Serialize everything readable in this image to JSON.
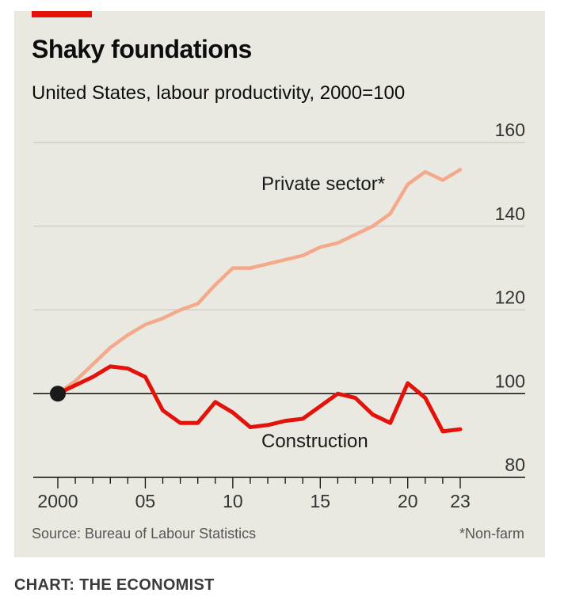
{
  "header": {
    "title": "Shaky foundations",
    "subtitle": "United States, labour productivity, 2000=100"
  },
  "footer": {
    "source": "Source: Bureau of Labour Statistics",
    "footnote": "*Non-farm",
    "credit": "CHART: THE ECONOMIST"
  },
  "colors": {
    "accent": "#e3120b",
    "private_sector": "#f4a98b",
    "construction": "#e3120b",
    "background": "#e9e9e2"
  },
  "chart_data": {
    "type": "line",
    "title": "Shaky foundations",
    "subtitle": "United States, labour productivity, 2000=100",
    "x": [
      2000,
      2001,
      2002,
      2003,
      2004,
      2005,
      2006,
      2007,
      2008,
      2009,
      2010,
      2011,
      2012,
      2013,
      2014,
      2015,
      2016,
      2017,
      2018,
      2019,
      2020,
      2021,
      2022,
      2023
    ],
    "series": [
      {
        "name": "Private sector*",
        "color": "#f4a98b",
        "values": [
          100,
          103,
          107,
          111,
          114,
          116.5,
          118,
          120,
          121.5,
          126,
          130,
          130,
          131,
          132,
          133,
          135,
          136,
          138,
          140,
          143,
          150,
          153,
          151,
          153.5
        ]
      },
      {
        "name": "Construction",
        "color": "#e3120b",
        "values": [
          100,
          102,
          104,
          106.5,
          106,
          104,
          96,
          93,
          93,
          98,
          95.5,
          92,
          92.5,
          93.5,
          94,
          97,
          100,
          99,
          95,
          93,
          102.5,
          99,
          91,
          91.5
        ]
      }
    ],
    "xtick_labels": [
      {
        "x": 2000,
        "label": "2000"
      },
      {
        "x": 2005,
        "label": "05"
      },
      {
        "x": 2010,
        "label": "10"
      },
      {
        "x": 2015,
        "label": "15"
      },
      {
        "x": 2020,
        "label": "20"
      },
      {
        "x": 2023,
        "label": "23"
      }
    ],
    "yticks": [
      80,
      100,
      120,
      140,
      160
    ],
    "ylim": [
      80,
      160
    ],
    "xlim": [
      2000,
      2023
    ],
    "baseline": 100,
    "start_marker": {
      "x": 2000,
      "y": 100
    },
    "grid": true,
    "y_axis_position": "right"
  }
}
